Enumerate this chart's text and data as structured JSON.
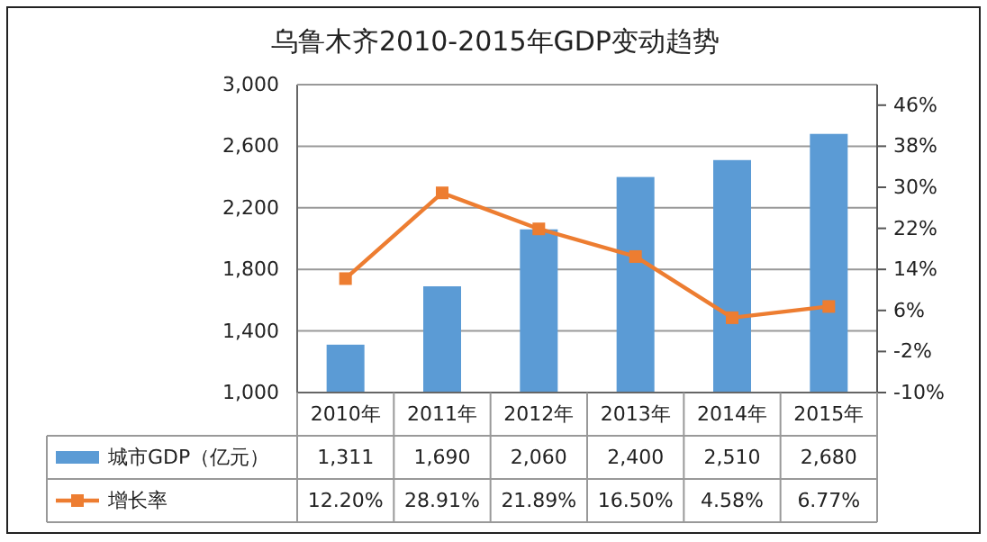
{
  "chart_data": {
    "type": "bar",
    "title": "乌鲁木齐2010-2015年GDP变动趋势",
    "categories": [
      "2010年",
      "2011年",
      "2012年",
      "2013年",
      "2014年",
      "2015年"
    ],
    "series": [
      {
        "name": "城市GDP（亿元）",
        "color": "#5b9bd5",
        "values": [
          1311,
          1690,
          2060,
          2400,
          2510,
          2680
        ],
        "value_labels": [
          "1,311",
          "1,690",
          "2,060",
          "2,400",
          "2,510",
          "2,680"
        ]
      },
      {
        "name": "增长率",
        "type": "line",
        "axis": "y2",
        "marker": "square",
        "color": "#ed7d31",
        "values": [
          12.2,
          28.91,
          21.89,
          16.5,
          4.58,
          6.77
        ],
        "value_labels": [
          "12.20%",
          "28.91%",
          "21.89%",
          "16.50%",
          "4.58%",
          "6.77%"
        ]
      }
    ],
    "ylim": [
      1000,
      3000
    ],
    "yticks": [
      {
        "value": 1000,
        "label": "1,000"
      },
      {
        "value": 1400,
        "label": "1,400"
      },
      {
        "value": 1800,
        "label": "1,800"
      },
      {
        "value": 2200,
        "label": "2,200"
      },
      {
        "value": 2600,
        "label": "2,600"
      },
      {
        "value": 3000,
        "label": "3,000"
      }
    ],
    "y2lim": [
      -10,
      50
    ],
    "y2ticks": [
      {
        "value": -10,
        "label": "-10%"
      },
      {
        "value": -2,
        "label": "-2%"
      },
      {
        "value": 6,
        "label": "6%"
      },
      {
        "value": 14,
        "label": "14%"
      },
      {
        "value": 22,
        "label": "22%"
      },
      {
        "value": 30,
        "label": "30%"
      },
      {
        "value": 38,
        "label": "38%"
      },
      {
        "value": 46,
        "label": "46%"
      }
    ],
    "grid": "y",
    "legend": "bottom"
  }
}
